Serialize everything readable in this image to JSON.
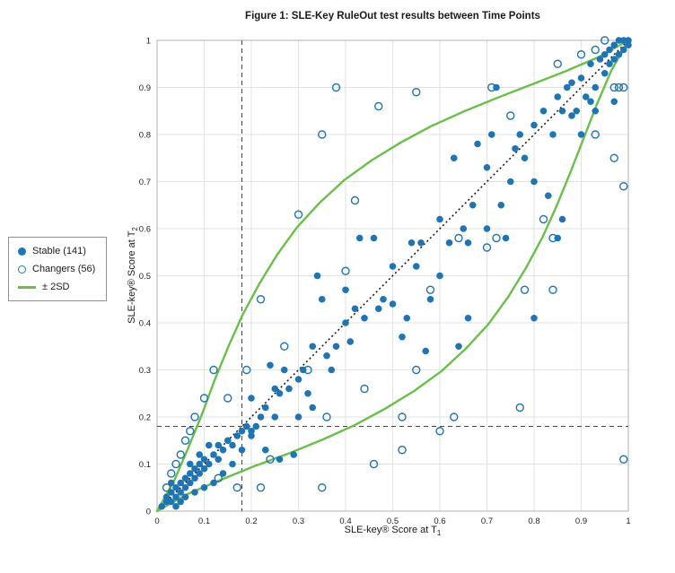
{
  "chart_data": {
    "type": "scatter",
    "title": "Figure 1: SLE-Key RuleOut test results between Time Points",
    "xlabel_base": "SLE-key® Score at T",
    "xlabel_sub": "1",
    "ylabel_base": "SLE-key® Score at T",
    "ylabel_sub": "2",
    "xlim": [
      0,
      1
    ],
    "ylim": [
      0,
      1
    ],
    "ticks": [
      0,
      0.1,
      0.2,
      0.3,
      0.4,
      0.5,
      0.6,
      0.7,
      0.8,
      0.9,
      1
    ],
    "grid": true,
    "legend_position": "left-outside",
    "band_label": "± 2SD",
    "threshold": {
      "x": 0.18,
      "y": 0.18
    },
    "identity_line_style": "dotted",
    "colors": {
      "stable": "#1f74b4",
      "changers": "#1f74b4",
      "band": "#6abf4a",
      "grid": "#e2e2e2",
      "axis_box": "#b0b0b0",
      "identity": "#111111",
      "threshold": "#444444"
    },
    "series": [
      {
        "name": "Stable (141)",
        "marker": "filled",
        "points": [
          [
            0.01,
            0.01
          ],
          [
            0.02,
            0.02
          ],
          [
            0.02,
            0.03
          ],
          [
            0.03,
            0.02
          ],
          [
            0.03,
            0.04
          ],
          [
            0.04,
            0.03
          ],
          [
            0.04,
            0.05
          ],
          [
            0.05,
            0.04
          ],
          [
            0.05,
            0.06
          ],
          [
            0.06,
            0.05
          ],
          [
            0.06,
            0.07
          ],
          [
            0.07,
            0.06
          ],
          [
            0.07,
            0.08
          ],
          [
            0.08,
            0.07
          ],
          [
            0.08,
            0.09
          ],
          [
            0.09,
            0.08
          ],
          [
            0.09,
            0.1
          ],
          [
            0.1,
            0.09
          ],
          [
            0.1,
            0.11
          ],
          [
            0.11,
            0.1
          ],
          [
            0.12,
            0.12
          ],
          [
            0.13,
            0.11
          ],
          [
            0.13,
            0.14
          ],
          [
            0.14,
            0.13
          ],
          [
            0.15,
            0.15
          ],
          [
            0.16,
            0.14
          ],
          [
            0.17,
            0.16
          ],
          [
            0.18,
            0.17
          ],
          [
            0.19,
            0.18
          ],
          [
            0.2,
            0.17
          ],
          [
            0.2,
            0.16
          ],
          [
            0.21,
            0.18
          ],
          [
            0.22,
            0.2
          ],
          [
            0.23,
            0.22
          ],
          [
            0.24,
            0.31
          ],
          [
            0.25,
            0.26
          ],
          [
            0.26,
            0.25
          ],
          [
            0.27,
            0.3
          ],
          [
            0.28,
            0.26
          ],
          [
            0.3,
            0.28
          ],
          [
            0.3,
            0.2
          ],
          [
            0.31,
            0.3
          ],
          [
            0.32,
            0.25
          ],
          [
            0.33,
            0.35
          ],
          [
            0.34,
            0.5
          ],
          [
            0.35,
            0.45
          ],
          [
            0.36,
            0.33
          ],
          [
            0.38,
            0.35
          ],
          [
            0.4,
            0.4
          ],
          [
            0.4,
            0.47
          ],
          [
            0.42,
            0.43
          ],
          [
            0.43,
            0.58
          ],
          [
            0.44,
            0.41
          ],
          [
            0.46,
            0.58
          ],
          [
            0.47,
            0.43
          ],
          [
            0.48,
            0.45
          ],
          [
            0.5,
            0.44
          ],
          [
            0.5,
            0.52
          ],
          [
            0.52,
            0.37
          ],
          [
            0.53,
            0.41
          ],
          [
            0.55,
            0.52
          ],
          [
            0.56,
            0.57
          ],
          [
            0.57,
            0.34
          ],
          [
            0.58,
            0.45
          ],
          [
            0.6,
            0.5
          ],
          [
            0.6,
            0.62
          ],
          [
            0.62,
            0.57
          ],
          [
            0.63,
            0.75
          ],
          [
            0.65,
            0.6
          ],
          [
            0.66,
            0.57
          ],
          [
            0.67,
            0.65
          ],
          [
            0.68,
            0.78
          ],
          [
            0.7,
            0.6
          ],
          [
            0.7,
            0.73
          ],
          [
            0.71,
            0.8
          ],
          [
            0.72,
            0.9
          ],
          [
            0.73,
            0.65
          ],
          [
            0.75,
            0.7
          ],
          [
            0.76,
            0.77
          ],
          [
            0.77,
            0.8
          ],
          [
            0.78,
            0.75
          ],
          [
            0.8,
            0.82
          ],
          [
            0.8,
            0.7
          ],
          [
            0.82,
            0.85
          ],
          [
            0.83,
            0.67
          ],
          [
            0.84,
            0.8
          ],
          [
            0.85,
            0.88
          ],
          [
            0.86,
            0.85
          ],
          [
            0.87,
            0.9
          ],
          [
            0.88,
            0.91
          ],
          [
            0.89,
            0.85
          ],
          [
            0.9,
            0.92
          ],
          [
            0.91,
            0.88
          ],
          [
            0.92,
            0.95
          ],
          [
            0.93,
            0.9
          ],
          [
            0.93,
            0.85
          ],
          [
            0.94,
            0.96
          ],
          [
            0.95,
            0.93
          ],
          [
            0.95,
            0.97
          ],
          [
            0.96,
            0.95
          ],
          [
            0.96,
            0.98
          ],
          [
            0.97,
            0.96
          ],
          [
            0.97,
            0.99
          ],
          [
            0.98,
            0.97
          ],
          [
            0.98,
            1
          ],
          [
            0.99,
            0.98
          ],
          [
            0.99,
            1
          ],
          [
            1,
            0.99
          ],
          [
            1,
            1
          ],
          [
            0.97,
            0.87
          ],
          [
            0.92,
            0.87
          ],
          [
            0.88,
            0.84
          ],
          [
            0.85,
            0.58
          ],
          [
            0.8,
            0.41
          ],
          [
            0.86,
            0.62
          ],
          [
            0.9,
            0.8
          ],
          [
            0.74,
            0.58
          ],
          [
            0.66,
            0.41
          ],
          [
            0.64,
            0.35
          ],
          [
            0.54,
            0.57
          ],
          [
            0.41,
            0.36
          ],
          [
            0.37,
            0.3
          ],
          [
            0.29,
            0.12
          ],
          [
            0.26,
            0.11
          ],
          [
            0.23,
            0.13
          ],
          [
            0.18,
            0.13
          ],
          [
            0.16,
            0.1
          ],
          [
            0.14,
            0.08
          ],
          [
            0.12,
            0.06
          ],
          [
            0.1,
            0.05
          ],
          [
            0.08,
            0.04
          ],
          [
            0.06,
            0.03
          ],
          [
            0.05,
            0.02
          ],
          [
            0.04,
            0.01
          ],
          [
            0.03,
            0.06
          ],
          [
            0.07,
            0.1
          ],
          [
            0.09,
            0.12
          ],
          [
            0.11,
            0.14
          ],
          [
            0.2,
            0.24
          ],
          [
            0.25,
            0.2
          ],
          [
            0.33,
            0.22
          ]
        ]
      },
      {
        "name": "Changers (56)",
        "marker": "open",
        "points": [
          [
            0.35,
            0.8
          ],
          [
            0.38,
            0.9
          ],
          [
            0.47,
            0.86
          ],
          [
            0.55,
            0.89
          ],
          [
            0.3,
            0.63
          ],
          [
            0.42,
            0.66
          ],
          [
            0.4,
            0.51
          ],
          [
            0.22,
            0.45
          ],
          [
            0.12,
            0.3
          ],
          [
            0.08,
            0.2
          ],
          [
            0.1,
            0.24
          ],
          [
            0.06,
            0.15
          ],
          [
            0.04,
            0.1
          ],
          [
            0.03,
            0.08
          ],
          [
            0.02,
            0.05
          ],
          [
            0.05,
            0.12
          ],
          [
            0.07,
            0.17
          ],
          [
            0.15,
            0.24
          ],
          [
            0.13,
            0.07
          ],
          [
            0.17,
            0.05
          ],
          [
            0.22,
            0.05
          ],
          [
            0.24,
            0.11
          ],
          [
            0.32,
            0.3
          ],
          [
            0.35,
            0.05
          ],
          [
            0.46,
            0.1
          ],
          [
            0.52,
            0.13
          ],
          [
            0.55,
            0.3
          ],
          [
            0.6,
            0.17
          ],
          [
            0.63,
            0.2
          ],
          [
            0.58,
            0.47
          ],
          [
            0.64,
            0.58
          ],
          [
            0.7,
            0.56
          ],
          [
            0.72,
            0.58
          ],
          [
            0.77,
            0.22
          ],
          [
            0.78,
            0.47
          ],
          [
            0.84,
            0.47
          ],
          [
            0.84,
            0.58
          ],
          [
            0.82,
            0.62
          ],
          [
            0.85,
            0.95
          ],
          [
            0.9,
            0.97
          ],
          [
            0.93,
            0.98
          ],
          [
            0.95,
            1
          ],
          [
            0.97,
            0.9
          ],
          [
            0.98,
            0.9
          ],
          [
            0.99,
            0.9
          ],
          [
            0.97,
            0.75
          ],
          [
            0.99,
            0.69
          ],
          [
            0.99,
            0.11
          ],
          [
            0.93,
            0.8
          ],
          [
            0.52,
            0.2
          ],
          [
            0.44,
            0.26
          ],
          [
            0.36,
            0.2
          ],
          [
            0.27,
            0.35
          ],
          [
            0.19,
            0.3
          ],
          [
            0.71,
            0.9
          ],
          [
            0.75,
            0.84
          ]
        ]
      }
    ],
    "band_upper": [
      [
        0,
        0
      ],
      [
        0.036,
        0.064
      ],
      [
        0.066,
        0.134
      ],
      [
        0.095,
        0.205
      ],
      [
        0.122,
        0.278
      ],
      [
        0.151,
        0.349
      ],
      [
        0.182,
        0.418
      ],
      [
        0.217,
        0.483
      ],
      [
        0.255,
        0.545
      ],
      [
        0.297,
        0.603
      ],
      [
        0.345,
        0.655
      ],
      [
        0.397,
        0.703
      ],
      [
        0.455,
        0.745
      ],
      [
        0.517,
        0.783
      ],
      [
        0.582,
        0.818
      ],
      [
        0.651,
        0.849
      ],
      [
        0.722,
        0.878
      ],
      [
        0.794,
        0.906
      ],
      [
        0.866,
        0.934
      ],
      [
        0.936,
        0.964
      ],
      [
        1,
        1
      ]
    ],
    "band_lower": [
      [
        0,
        0
      ],
      [
        0.064,
        0.036
      ],
      [
        0.134,
        0.066
      ],
      [
        0.205,
        0.095
      ],
      [
        0.278,
        0.122
      ],
      [
        0.349,
        0.151
      ],
      [
        0.418,
        0.182
      ],
      [
        0.483,
        0.217
      ],
      [
        0.545,
        0.255
      ],
      [
        0.603,
        0.297
      ],
      [
        0.655,
        0.345
      ],
      [
        0.703,
        0.397
      ],
      [
        0.745,
        0.455
      ],
      [
        0.783,
        0.517
      ],
      [
        0.818,
        0.582
      ],
      [
        0.849,
        0.651
      ],
      [
        0.878,
        0.722
      ],
      [
        0.906,
        0.794
      ],
      [
        0.934,
        0.866
      ],
      [
        0.964,
        0.936
      ],
      [
        1,
        1
      ]
    ]
  }
}
